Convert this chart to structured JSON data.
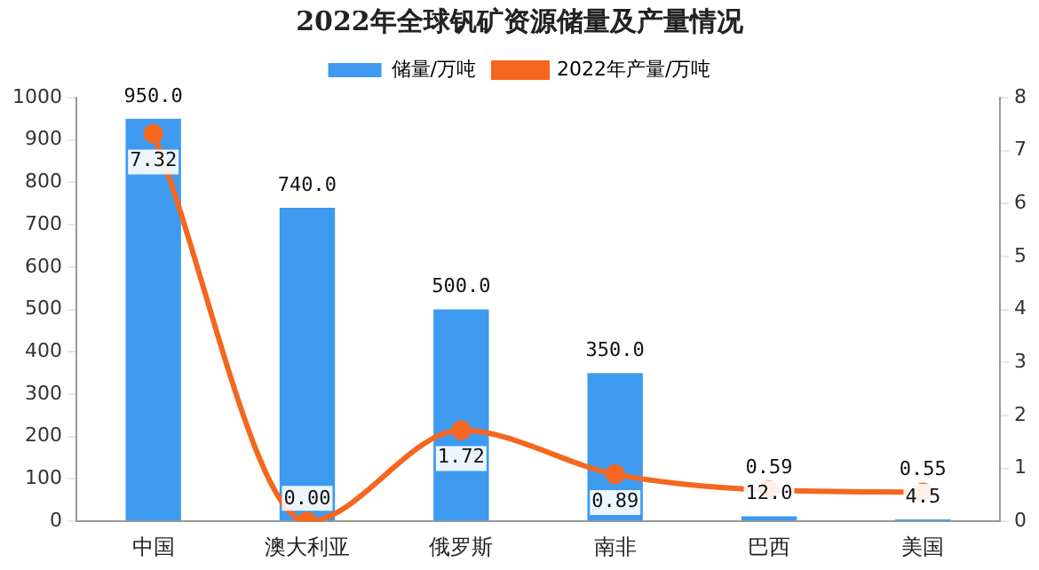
{
  "chart_data": {
    "type": "bar",
    "title": "2022年全球钒矿资源储量及产量情况",
    "categories": [
      "中国",
      "澳大利亚",
      "俄罗斯",
      "南非",
      "巴西",
      "美国"
    ],
    "series": [
      {
        "name": "储量/万吨",
        "color": "#3d9aef",
        "values": [
          950,
          740,
          500,
          350,
          12,
          4.5
        ],
        "value_labels": [
          "950.0",
          "740.0",
          "500.0",
          "350.0",
          "12.0",
          "4.5"
        ]
      },
      {
        "name": "2022年产量/万吨",
        "type": "line",
        "axis": "y2",
        "color": "#f5661e",
        "values": [
          7.32,
          0,
          1.72,
          0.89,
          0.59,
          0.55
        ],
        "value_labels": [
          "7.32",
          "0.00",
          "1.72",
          "0.89",
          "0.59",
          "0.55"
        ]
      }
    ],
    "ylim": [
      0,
      1000
    ],
    "yticks": [
      0,
      100,
      200,
      300,
      400,
      500,
      600,
      700,
      800,
      900,
      1000
    ],
    "y2lim": [
      0,
      8
    ],
    "y2ticks": [
      0,
      1,
      2,
      3,
      4,
      5,
      6,
      7,
      8
    ],
    "legend": "top",
    "grid": false,
    "marker": "circle",
    "line_style": "solid"
  }
}
